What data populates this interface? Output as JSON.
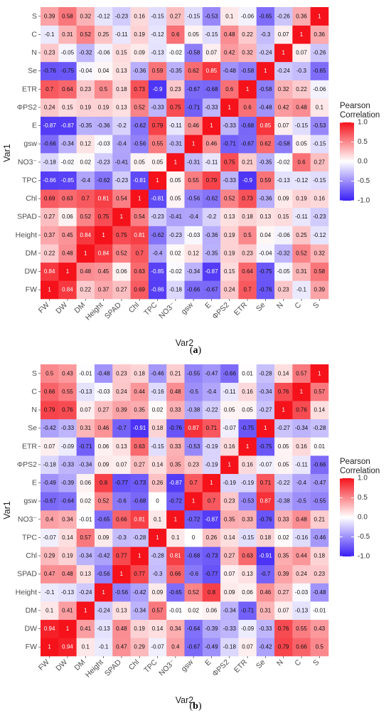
{
  "chart_data": [
    {
      "type": "heatmap",
      "panel_label": "(a)",
      "panel_letter": "a",
      "xlabel": "Var2",
      "ylabel": "Var1",
      "legend": {
        "title_line1": "Pearson",
        "title_line2": "Correlation",
        "ticks": [
          "1.0",
          "0.5",
          "0.0",
          "-0.5",
          "-1.0"
        ],
        "range": [
          -1,
          1
        ],
        "colors": {
          "low": "#3a1ff5",
          "mid": "#ffffff",
          "high": "#f5121b"
        },
        "placement": "right"
      },
      "vars": [
        "FW",
        "DW",
        "DM",
        "Height",
        "SPAD",
        "Chl",
        "TPC",
        "NO3⁻",
        "gsw",
        "E",
        "ΦPS2",
        "ETR",
        "Se",
        "N",
        "C",
        "S"
      ],
      "values": [
        [
          1,
          0.84,
          0.22,
          0.37,
          0.27,
          0.69,
          -0.86,
          -0.18,
          -0.66,
          -0.67,
          0.24,
          0.7,
          -0.76,
          0.23,
          -0.1,
          0.39
        ],
        [
          0.84,
          1,
          0.48,
          0.45,
          0.06,
          0.63,
          -0.85,
          -0.02,
          -0.34,
          -0.87,
          0.15,
          0.64,
          -0.75,
          -0.05,
          0.31,
          0.58
        ],
        [
          0.22,
          0.48,
          1,
          0.84,
          0.52,
          0.7,
          -0.4,
          0.02,
          0.12,
          -0.35,
          0.19,
          0.23,
          -0.04,
          -0.32,
          0.52,
          0.32
        ],
        [
          0.37,
          0.45,
          0.84,
          1,
          0.75,
          0.81,
          -0.62,
          -0.23,
          -0.03,
          -0.36,
          0.19,
          0.5,
          0.04,
          -0.06,
          0.25,
          -0.12
        ],
        [
          0.27,
          0.06,
          0.52,
          0.75,
          1,
          0.54,
          -0.23,
          -0.41,
          -0.4,
          -0.2,
          0.13,
          0.18,
          0.13,
          0.15,
          -0.11,
          -0.23
        ],
        [
          0.69,
          0.63,
          0.7,
          0.81,
          0.54,
          1,
          -0.81,
          0.05,
          -0.56,
          -0.62,
          0.52,
          0.73,
          -0.36,
          0.09,
          0.19,
          0.16
        ],
        [
          -0.86,
          -0.85,
          -0.4,
          -0.62,
          -0.23,
          -0.81,
          1,
          0.05,
          0.55,
          0.79,
          -0.33,
          -0.9,
          0.59,
          -0.13,
          -0.12,
          -0.15
        ],
        [
          -0.18,
          -0.02,
          0.02,
          -0.23,
          -0.41,
          0.05,
          0.05,
          1,
          -0.31,
          -0.11,
          0.75,
          0.21,
          -0.35,
          -0.02,
          0.6,
          0.27
        ],
        [
          -0.66,
          -0.34,
          0.12,
          -0.03,
          -0.4,
          -0.56,
          0.55,
          -0.31,
          1,
          0.46,
          -0.71,
          -0.67,
          0.62,
          -0.58,
          0.05,
          -0.15
        ],
        [
          -0.87,
          -0.87,
          -0.35,
          -0.36,
          -0.2,
          -0.62,
          0.79,
          -0.11,
          0.46,
          1,
          -0.33,
          -0.68,
          0.85,
          0.07,
          -0.15,
          -0.53
        ],
        [
          0.24,
          0.15,
          0.19,
          0.19,
          0.13,
          0.52,
          -0.33,
          0.75,
          -0.71,
          -0.33,
          1,
          0.6,
          -0.48,
          0.42,
          0.48,
          0.1
        ],
        [
          0.7,
          0.64,
          0.23,
          0.5,
          0.18,
          0.73,
          -0.9,
          0.23,
          -0.67,
          -0.68,
          0.6,
          1,
          -0.58,
          0.32,
          0.22,
          -0.06
        ],
        [
          -0.76,
          -0.75,
          -0.04,
          0.04,
          0.13,
          -0.36,
          0.59,
          -0.35,
          0.62,
          0.85,
          -0.48,
          -0.58,
          1,
          -0.24,
          -0.3,
          -0.65
        ],
        [
          0.23,
          -0.05,
          -0.32,
          -0.06,
          0.15,
          0.09,
          -0.13,
          -0.02,
          -0.58,
          0.07,
          0.42,
          0.32,
          -0.24,
          1,
          0.07,
          -0.26
        ],
        [
          -0.1,
          0.31,
          0.52,
          0.25,
          -0.11,
          0.19,
          -0.12,
          0.6,
          0.05,
          -0.15,
          0.48,
          0.22,
          -0.3,
          0.07,
          1,
          0.36
        ],
        [
          0.39,
          0.58,
          0.32,
          -0.12,
          -0.23,
          0.16,
          -0.15,
          0.27,
          -0.15,
          -0.53,
          0.1,
          -0.06,
          -0.65,
          -0.26,
          0.36,
          1
        ]
      ]
    },
    {
      "type": "heatmap",
      "panel_label": "(b)",
      "panel_letter": "b",
      "xlabel": "Var2",
      "ylabel": "Var1",
      "legend": {
        "title_line1": "Pearson",
        "title_line2": "Correlation",
        "ticks": [
          "1.0",
          "0.5",
          "0.0",
          "-0.5",
          "-1.0"
        ],
        "range": [
          -1,
          1
        ],
        "colors": {
          "low": "#3a1ff5",
          "mid": "#ffffff",
          "high": "#f5121b"
        },
        "placement": "right"
      },
      "vars": [
        "FW",
        "DW",
        "DM",
        "Height",
        "SPAD",
        "Chl",
        "TPC",
        "NO3⁻",
        "gsw",
        "E",
        "ΦPS2",
        "ETR",
        "Se",
        "N",
        "C",
        "S"
      ],
      "values": [
        [
          1,
          0.94,
          0.1,
          -0.1,
          0.47,
          0.29,
          -0.07,
          0.4,
          -0.67,
          -0.49,
          -0.18,
          0.07,
          -0.42,
          0.79,
          0.66,
          0.5
        ],
        [
          0.94,
          1,
          0.41,
          -0.13,
          0.48,
          0.19,
          0.14,
          0.34,
          -0.64,
          -0.39,
          -0.33,
          -0.09,
          -0.33,
          0.76,
          0.55,
          0.43
        ],
        [
          0.1,
          0.41,
          1,
          -0.24,
          0.13,
          -0.34,
          0.57,
          -0.01,
          0.02,
          0.06,
          -0.34,
          -0.71,
          0.31,
          0.07,
          -0.13,
          -0.01
        ],
        [
          -0.1,
          -0.13,
          -0.24,
          1,
          -0.56,
          -0.42,
          0.09,
          -0.65,
          0.52,
          0.8,
          0.09,
          0.06,
          0.46,
          0.27,
          -0.03,
          -0.48
        ],
        [
          0.47,
          0.48,
          0.13,
          -0.56,
          1,
          0.77,
          -0.3,
          0.66,
          -0.6,
          -0.77,
          0.07,
          0.13,
          -0.7,
          0.39,
          0.24,
          0.23
        ],
        [
          0.29,
          0.19,
          -0.34,
          -0.42,
          0.77,
          1,
          -0.28,
          0.81,
          -0.68,
          -0.73,
          0.27,
          0.63,
          -0.91,
          0.35,
          0.44,
          0.18
        ],
        [
          -0.07,
          0.14,
          0.57,
          0.09,
          -0.3,
          -0.28,
          1,
          0.1,
          0,
          0.26,
          0.14,
          -0.15,
          0.18,
          0.02,
          -0.16,
          -0.46
        ],
        [
          0.4,
          0.34,
          -0.01,
          -0.65,
          0.66,
          0.81,
          0.1,
          1,
          -0.72,
          -0.87,
          0.35,
          0.33,
          -0.76,
          0.33,
          0.48,
          0.21
        ],
        [
          -0.67,
          -0.64,
          0.02,
          0.52,
          -0.6,
          -0.68,
          0,
          -0.72,
          1,
          0.7,
          0.23,
          -0.53,
          0.87,
          -0.38,
          -0.5,
          -0.55
        ],
        [
          -0.49,
          -0.39,
          0.06,
          0.8,
          -0.77,
          -0.73,
          0.26,
          -0.87,
          0.7,
          1,
          -0.19,
          -0.19,
          0.71,
          -0.22,
          -0.4,
          -0.47
        ],
        [
          -0.18,
          -0.33,
          -0.34,
          0.09,
          0.07,
          0.27,
          0.14,
          0.35,
          0.23,
          -0.19,
          1,
          0.16,
          -0.07,
          0.05,
          -0.11,
          -0.66
        ],
        [
          0.07,
          -0.09,
          -0.71,
          0.06,
          0.13,
          0.63,
          -0.15,
          0.33,
          -0.53,
          -0.19,
          0.16,
          1,
          -0.75,
          0.05,
          0.16,
          0.01
        ],
        [
          -0.42,
          -0.33,
          0.31,
          0.46,
          -0.7,
          -0.91,
          0.18,
          -0.76,
          0.87,
          0.71,
          -0.07,
          -0.75,
          1,
          -0.27,
          -0.34,
          -0.28
        ],
        [
          0.79,
          0.76,
          0.07,
          0.27,
          0.39,
          0.35,
          0.02,
          0.33,
          -0.38,
          -0.22,
          0.05,
          0.05,
          -0.27,
          1,
          0.76,
          0.14
        ],
        [
          0.66,
          0.55,
          -0.13,
          -0.03,
          0.24,
          0.44,
          -0.16,
          0.48,
          -0.5,
          -0.4,
          -0.11,
          0.16,
          -0.34,
          0.76,
          1,
          0.57
        ],
        [
          0.5,
          0.43,
          -0.01,
          -0.48,
          0.23,
          0.18,
          -0.46,
          0.21,
          -0.55,
          -0.47,
          -0.66,
          0.01,
          -0.28,
          0.14,
          0.57,
          1
        ]
      ]
    }
  ]
}
